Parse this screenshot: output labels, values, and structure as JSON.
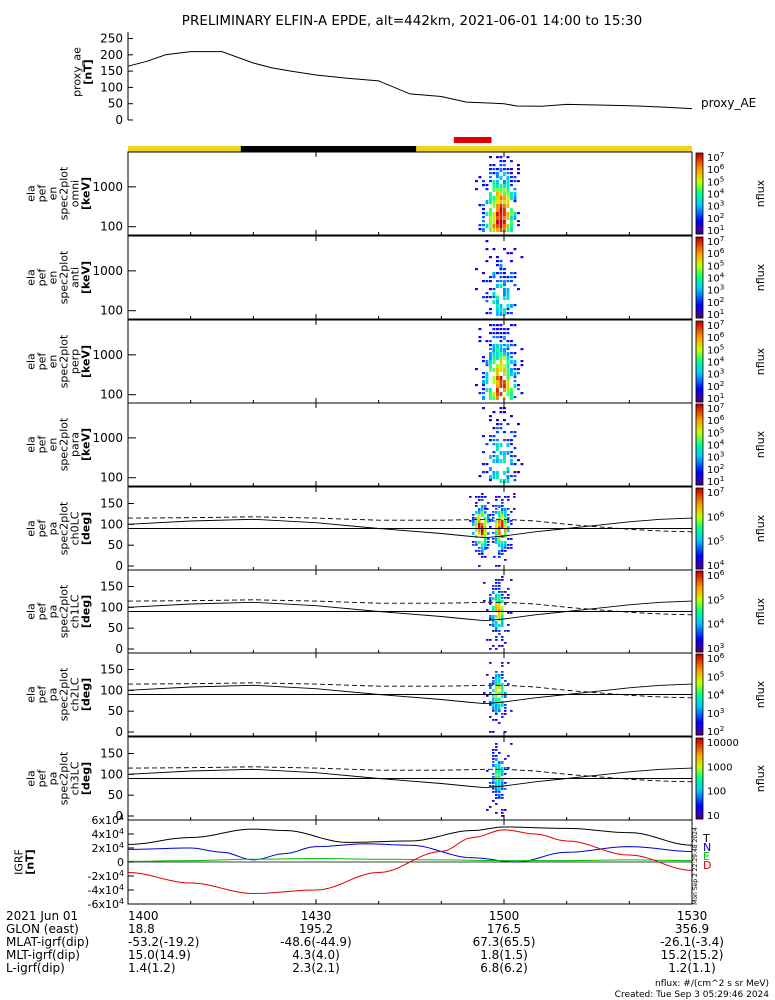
{
  "title": "PRELIMINARY ELFIN-A EPDE, alt=442km, 2021-06-01 14:00 to 15:30",
  "chart_data": {
    "type": "line",
    "x_range": [
      "14:00",
      "15:30"
    ],
    "x_ticks": [
      "1400",
      "1430",
      "1500",
      "1530"
    ],
    "x_tick_minutes": [
      0,
      30,
      60,
      90
    ],
    "proxy_ae": {
      "ylabel": "proxy_ae",
      "yunit": "[nT]",
      "ylim": [
        0,
        270
      ],
      "yticks": [
        "250",
        "200",
        "150",
        "100",
        "50",
        "0"
      ],
      "legend": "proxy_AE",
      "series": [
        {
          "name": "proxy_AE",
          "x": [
            0,
            3,
            6,
            10,
            15,
            20,
            23,
            26,
            30,
            35,
            40,
            45,
            50,
            54,
            58,
            60,
            62,
            66,
            70,
            75,
            80,
            85,
            90
          ],
          "y": [
            165,
            180,
            200,
            210,
            210,
            175,
            160,
            150,
            138,
            128,
            120,
            80,
            72,
            55,
            52,
            50,
            43,
            42,
            48,
            46,
            44,
            40,
            35
          ]
        }
      ]
    },
    "status_bar": {
      "colors": {
        "yellow": "#f2d21b",
        "black": "#000000",
        "red": "#e00000"
      },
      "segments": [
        {
          "start": 0,
          "end": 18,
          "color": "yellow"
        },
        {
          "start": 18,
          "end": 46,
          "color": "black"
        },
        {
          "start": 46,
          "end": 90,
          "color": "yellow"
        }
      ],
      "science_zone": {
        "start": 52,
        "end": 58
      }
    },
    "spectrogram_panels": [
      {
        "label": [
          "ela",
          "pef",
          "en",
          "spec2plot",
          "omni"
        ],
        "unit": "[keV]",
        "yticks": [
          "1000",
          "100"
        ],
        "cbar_ticks": [
          "10^7",
          "10^6",
          "10^5",
          "10^4",
          "10^3",
          "10^2",
          "10^1"
        ],
        "cbar_label": "nflux",
        "intensity": 1.0
      },
      {
        "label": [
          "ela",
          "pef",
          "en",
          "spec2plot",
          "anti"
        ],
        "unit": "[keV]",
        "yticks": [
          "1000",
          "100"
        ],
        "cbar_ticks": [
          "10^7",
          "10^6",
          "10^5",
          "10^4",
          "10^3",
          "10^2",
          "10^1"
        ],
        "cbar_label": "nflux",
        "intensity": 0.45
      },
      {
        "label": [
          "ela",
          "pef",
          "en",
          "spec2plot",
          "perp"
        ],
        "unit": "[keV]",
        "yticks": [
          "1000",
          "100"
        ],
        "cbar_ticks": [
          "10^7",
          "10^6",
          "10^5",
          "10^4",
          "10^3",
          "10^2",
          "10^1"
        ],
        "cbar_label": "nflux",
        "intensity": 0.95
      },
      {
        "label": [
          "ela",
          "pef",
          "en",
          "spec2plot",
          "para"
        ],
        "unit": "[keV]",
        "yticks": [
          "1000",
          "100"
        ],
        "cbar_ticks": [
          "10^7",
          "10^6",
          "10^5",
          "10^4",
          "10^3",
          "10^2",
          "10^1"
        ],
        "cbar_label": "nflux",
        "intensity": 0.5
      }
    ],
    "pitch_panels": [
      {
        "label": [
          "ela",
          "pef",
          "pa",
          "spec2plot",
          "ch0LC"
        ],
        "unit": "[deg]",
        "yticks": [
          "150",
          "100",
          "50",
          "0"
        ],
        "cbar_ticks": [
          "10^7",
          "10^6",
          "10^5",
          "10^4"
        ],
        "cbar_label": "nflux",
        "intensity": 1.0
      },
      {
        "label": [
          "ela",
          "pef",
          "pa",
          "spec2plot",
          "ch1LC"
        ],
        "unit": "[deg]",
        "yticks": [
          "150",
          "100",
          "50",
          "0"
        ],
        "cbar_ticks": [
          "10^6",
          "10^5",
          "10^4",
          "10^3"
        ],
        "cbar_label": "nflux",
        "intensity": 0.8
      },
      {
        "label": [
          "ela",
          "pef",
          "pa",
          "spec2plot",
          "ch2LC"
        ],
        "unit": "[deg]",
        "yticks": [
          "150",
          "100",
          "50",
          "0"
        ],
        "cbar_ticks": [
          "10^6",
          "10^5",
          "10^4",
          "10^3",
          "10^2"
        ],
        "cbar_label": "nflux",
        "intensity": 0.7
      },
      {
        "label": [
          "ela",
          "pef",
          "pa",
          "spec2plot",
          "ch3LC"
        ],
        "unit": "[deg]",
        "yticks": [
          "150",
          "100",
          "50",
          "0"
        ],
        "cbar_ticks": [
          "10000",
          "1000",
          "100",
          "10"
        ],
        "cbar_label": "nflux",
        "intensity": 0.55
      }
    ],
    "pitch_lines": {
      "x": [
        0,
        10,
        20,
        30,
        40,
        50,
        54,
        57,
        60,
        65,
        70,
        75,
        80,
        85,
        90
      ],
      "solid_loss_cone": [
        100,
        108,
        112,
        104,
        90,
        78,
        72,
        68,
        72,
        82,
        90,
        98,
        106,
        112,
        115
      ],
      "dashed_upper": [
        115,
        116,
        118,
        115,
        110,
        110,
        111,
        112,
        112,
        108,
        100,
        94,
        88,
        84,
        82
      ],
      "horizontal": 90
    },
    "igrf": {
      "ylabel": "IGRF",
      "unit": "[nT]",
      "ylim": [
        -60000,
        60000
      ],
      "yticks": [
        "6x10^4",
        "4x10^4",
        "2x10^4",
        "0",
        "-2x10^4",
        "-4x10^4",
        "-6x10^4"
      ],
      "series": [
        {
          "name": "T",
          "color": "#000000",
          "x": [
            0,
            10,
            20,
            25,
            35,
            45,
            55,
            60,
            70,
            80,
            90
          ],
          "y": [
            25000,
            35000,
            47000,
            45000,
            28000,
            30000,
            45000,
            50000,
            48000,
            42000,
            24000
          ]
        },
        {
          "name": "N",
          "color": "#0000d0",
          "x": [
            0,
            10,
            15,
            20,
            25,
            30,
            38,
            45,
            55,
            62,
            70,
            80,
            90
          ],
          "y": [
            18000,
            20000,
            14000,
            3000,
            12000,
            22000,
            26000,
            24000,
            6000,
            0,
            14000,
            22000,
            15000
          ]
        },
        {
          "name": "E",
          "color": "#00c000",
          "x": [
            0,
            10,
            20,
            30,
            40,
            50,
            60,
            70,
            80,
            90
          ],
          "y": [
            1000,
            2000,
            4000,
            5000,
            4000,
            3000,
            2000,
            2000,
            3000,
            2000
          ]
        },
        {
          "name": "D",
          "color": "#e00000",
          "x": [
            0,
            10,
            20,
            30,
            40,
            50,
            55,
            60,
            65,
            70,
            80,
            90
          ],
          "y": [
            -15000,
            -30000,
            -45000,
            -40000,
            -15000,
            15000,
            35000,
            46000,
            40000,
            30000,
            10000,
            -12000
          ]
        }
      ],
      "side_stamp": "Mon Sep  2 22:29:48 2024"
    },
    "ephemeris": {
      "rows": [
        {
          "label": "2021 Jun 01",
          "values": [
            "1400",
            "1430",
            "1500",
            "1530"
          ]
        },
        {
          "label": "GLON (east)",
          "values": [
            "18.8",
            "195.2",
            "176.5",
            "356.9"
          ]
        },
        {
          "label": "MLAT-igrf(dip)",
          "values": [
            "-53.2(-19.2)",
            "-48.6(-44.9)",
            "67.3(65.5)",
            "-26.1(-3.4)"
          ]
        },
        {
          "label": "MLT-igrf(dip)",
          "values": [
            "15.0(14.9)",
            "4.3(4.0)",
            "1.8(1.5)",
            "15.2(15.2)"
          ]
        },
        {
          "label": "L-igrf(dip)",
          "values": [
            "1.4(1.2)",
            "2.3(2.1)",
            "6.8(6.2)",
            "1.2(1.1)"
          ]
        }
      ]
    },
    "footer": {
      "units": "nflux: #/(cm^2 s sr MeV)",
      "created": "Created: Tue Sep  3 05:29:46 2024"
    }
  }
}
